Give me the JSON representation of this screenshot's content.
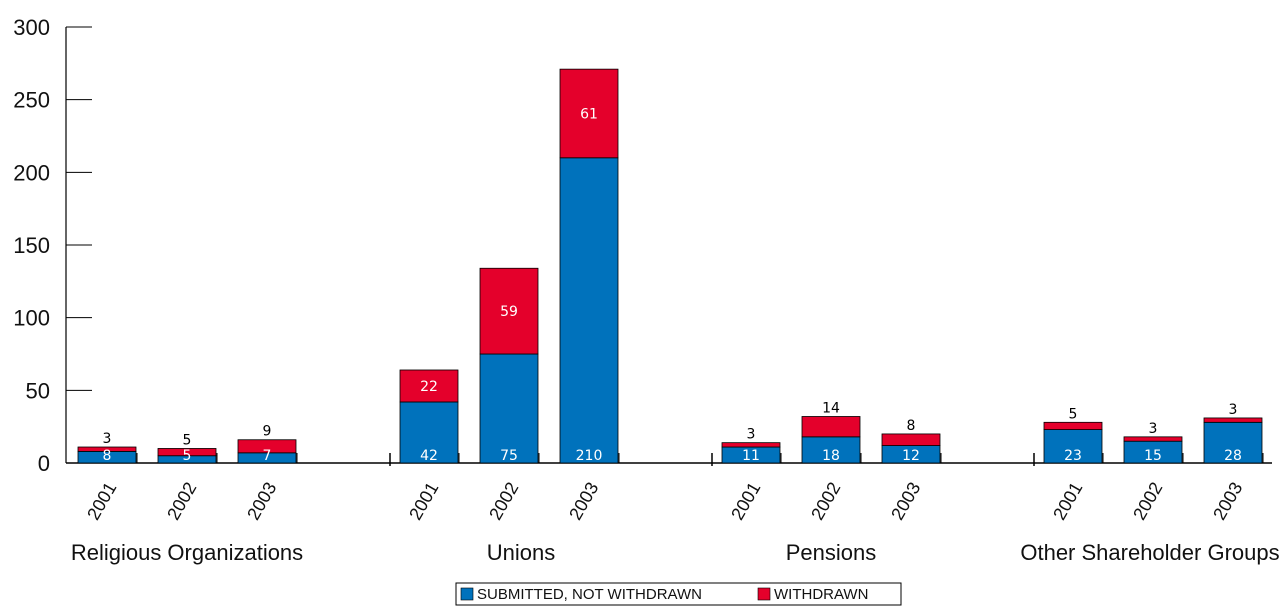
{
  "chart_data": {
    "type": "bar",
    "stacked": true,
    "title": "",
    "xlabel": "",
    "ylabel": "",
    "ylim": [
      0,
      300
    ],
    "yticks": [
      0,
      50,
      100,
      150,
      200,
      250,
      300
    ],
    "years": [
      "2001",
      "2002",
      "2003"
    ],
    "groups": [
      {
        "name": "Religious Organizations",
        "submitted": [
          8,
          5,
          7
        ],
        "withdrawn": [
          3,
          5,
          9
        ]
      },
      {
        "name": "Unions",
        "submitted": [
          42,
          75,
          210
        ],
        "withdrawn": [
          22,
          59,
          61
        ]
      },
      {
        "name": "Pensions",
        "submitted": [
          11,
          18,
          12
        ],
        "withdrawn": [
          3,
          14,
          8
        ]
      },
      {
        "name": "Other Shareholder Groups",
        "submitted": [
          23,
          15,
          28
        ],
        "withdrawn": [
          5,
          3,
          3
        ]
      }
    ],
    "series": [
      {
        "name": "SUBMITTED, NOT WITHDRAWN",
        "color": "#0072bc"
      },
      {
        "name": "WITHDRAWN",
        "color": "#e4002b"
      }
    ],
    "legend_position": "bottom-center",
    "grid": false
  }
}
